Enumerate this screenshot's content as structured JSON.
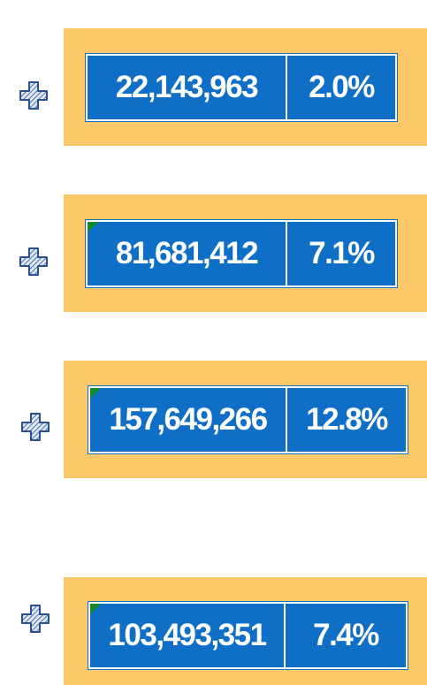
{
  "rows": [
    {
      "value": "22,143,963",
      "percent": "2.0%"
    },
    {
      "value": "81,681,412",
      "percent": "7.1%"
    },
    {
      "value": "157,649,266",
      "percent": "12.8%"
    },
    {
      "value": "103,493,351",
      "percent": "7.4%"
    }
  ]
}
